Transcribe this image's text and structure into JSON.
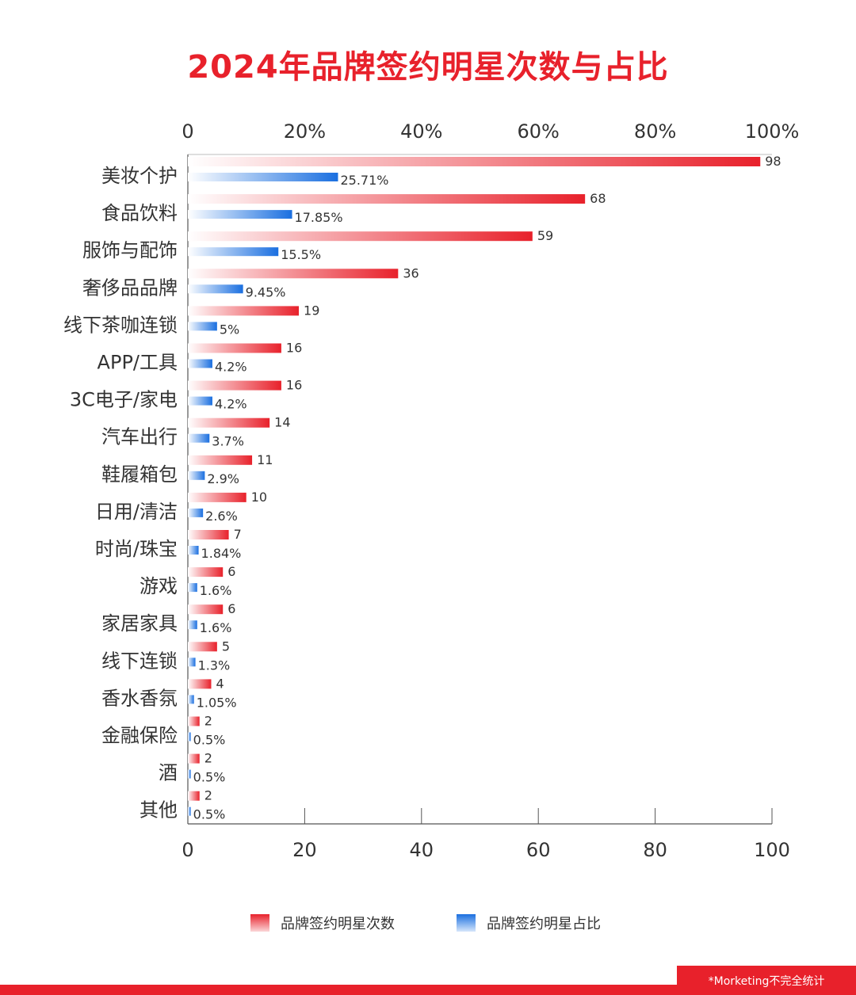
{
  "title": "2024年品牌签约明星次数与占比",
  "legend": {
    "count": "品牌签约明星次数",
    "share": "品牌签约明星占比"
  },
  "footnote": "*Morketing不完全统计",
  "colors": {
    "title": "#e8212b",
    "count_bar": "#e8212b",
    "share_bar": "#1a6fe0"
  },
  "chart_data": {
    "type": "bar",
    "orientation": "horizontal",
    "categories": [
      "美妆个护",
      "食品饮料",
      "服饰与配饰",
      "奢侈品品牌",
      "线下茶咖连锁",
      "APP/工具",
      "3C电子/家电",
      "汽车出行",
      "鞋履箱包",
      "日用/清洁",
      "时尚/珠宝",
      "游戏",
      "家居家具",
      "线下连锁",
      "香水香氛",
      "金融保险",
      "酒",
      "其他"
    ],
    "series": [
      {
        "name": "品牌签约明星次数",
        "values": [
          98,
          68,
          59,
          36,
          19,
          16,
          16,
          14,
          11,
          10,
          7,
          6,
          6,
          5,
          4,
          2,
          2,
          2
        ],
        "labels": [
          "98",
          "68",
          "59",
          "36",
          "19",
          "16",
          "16",
          "14",
          "11",
          "10",
          "7",
          "6",
          "6",
          "5",
          "4",
          "2",
          "2",
          "2"
        ]
      },
      {
        "name": "品牌签约明星占比",
        "values": [
          25.71,
          17.85,
          15.5,
          9.45,
          5,
          4.2,
          4.2,
          3.7,
          2.9,
          2.6,
          1.84,
          1.6,
          1.6,
          1.3,
          1.05,
          0.5,
          0.5,
          0.5
        ],
        "labels": [
          "25.71%",
          "17.85%",
          "15.5%",
          "9.45%",
          "5%",
          "4.2%",
          "4.2%",
          "3.7%",
          "2.9%",
          "2.6%",
          "1.84%",
          "1.6%",
          "1.6%",
          "1.3%",
          "1.05%",
          "0.5%",
          "0.5%",
          "0.5%"
        ]
      }
    ],
    "top_axis": {
      "range": [
        0,
        100
      ],
      "ticks": [
        "0",
        "20%",
        "40%",
        "60%",
        "80%",
        "100%"
      ]
    },
    "bottom_axis": {
      "range": [
        0,
        100
      ],
      "ticks": [
        "0",
        "20",
        "40",
        "60",
        "80",
        "100"
      ]
    },
    "grid": false
  }
}
